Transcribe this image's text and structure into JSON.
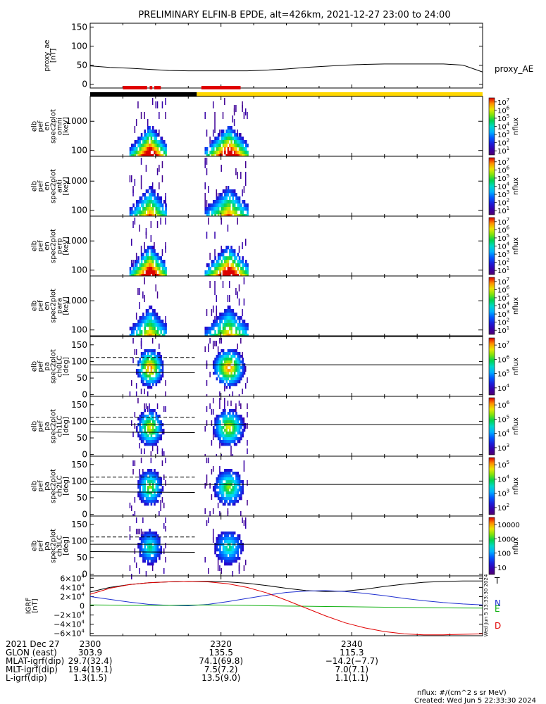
{
  "title": "PRELIMINARY ELFIN-B EPDE, alt=426km, 2021-12-27 23:00 to 24:00",
  "colors": {
    "black": "#000000",
    "red": "#e00000",
    "yellow": "#ffd700",
    "blue": "#2030d0",
    "green": "#10b010"
  },
  "chart_data": [
    {
      "type": "line",
      "name": "proxy_ae",
      "ylabel": "proxy_ae\n[nT]",
      "legend": "proxy_AE",
      "ylim": [
        -10,
        160
      ],
      "yticks": [
        "0",
        "50",
        "100",
        "150"
      ],
      "ytick_values": [
        0,
        50,
        100,
        150
      ],
      "x": [
        0,
        3,
        6,
        9,
        12,
        15,
        18,
        21,
        24,
        27,
        30,
        33,
        36,
        39,
        42,
        45,
        48,
        51,
        54,
        57,
        60
      ],
      "values": [
        48,
        44,
        42,
        39,
        36,
        35,
        35,
        35,
        35,
        37,
        40,
        44,
        47,
        50,
        52,
        53,
        53,
        53,
        53,
        50,
        32
      ]
    },
    {
      "type": "bar",
      "name": "status_bars",
      "segments_top": [
        {
          "start": 5.0,
          "end": 8.7,
          "color": "red"
        },
        {
          "start": 9.1,
          "end": 9.5,
          "color": "red"
        },
        {
          "start": 9.8,
          "end": 10.8,
          "color": "red"
        },
        {
          "start": 17.0,
          "end": 23.0,
          "color": "red"
        }
      ],
      "segments_bottom": [
        {
          "start": 0,
          "end": 16.3,
          "color": "black"
        },
        {
          "start": 16.3,
          "end": 60,
          "color": "yellow"
        }
      ]
    },
    {
      "type": "heatmap",
      "name": "pef_en_spec2plot_omni",
      "ylabel": "elb\npef\nen\nspec2plot\nomni\n[keV]",
      "yticks": [
        "100",
        "1000"
      ],
      "colorbar": {
        "label": "nflux",
        "ticks": [
          "10",
          "10",
          "10",
          "10",
          "10",
          "10",
          "10"
        ],
        "exp": [
          "1",
          "2",
          "3",
          "4",
          "5",
          "6",
          "7"
        ]
      }
    },
    {
      "type": "heatmap",
      "name": "pef_en_spec2plot_anti",
      "ylabel": "elb\npef\nen\nspec2plot\nanti\n[keV]",
      "yticks": [
        "100",
        "1000"
      ],
      "colorbar": {
        "label": "nflux",
        "ticks": [
          "10",
          "10",
          "10",
          "10",
          "10",
          "10",
          "10"
        ],
        "exp": [
          "1",
          "2",
          "3",
          "4",
          "5",
          "6",
          "7"
        ]
      }
    },
    {
      "type": "heatmap",
      "name": "pef_en_spec2plot_perp",
      "ylabel": "elb\npef\nen\nspec2plot\nperp\n[keV]",
      "yticks": [
        "100",
        "1000"
      ],
      "colorbar": {
        "label": "nflux",
        "ticks": [
          "10",
          "10",
          "10",
          "10",
          "10",
          "10",
          "10"
        ],
        "exp": [
          "1",
          "2",
          "3",
          "4",
          "5",
          "6",
          "7"
        ]
      }
    },
    {
      "type": "heatmap",
      "name": "pef_en_spec2plot_para",
      "ylabel": "elb\npef\nen\nspec2plot\npara\n[keV]",
      "yticks": [
        "100",
        "1000"
      ],
      "colorbar": {
        "label": "nflux",
        "ticks": [
          "10",
          "10",
          "10",
          "10",
          "10",
          "10",
          "10"
        ],
        "exp": [
          "1",
          "2",
          "3",
          "4",
          "5",
          "6",
          "7"
        ]
      }
    },
    {
      "type": "heatmap",
      "name": "pef_pa_spec2plot_ch0LC",
      "ylabel": "elb\npef\npa\nspec2plot\nch0LC\n[deg]",
      "yticks": [
        "0",
        "50",
        "100",
        "150"
      ],
      "colorbar": {
        "label": "nflux",
        "ticks": [
          "10",
          "10",
          "10",
          "10"
        ],
        "exp": [
          "4",
          "5",
          "6",
          "7"
        ]
      }
    },
    {
      "type": "heatmap",
      "name": "pef_pa_spec2plot_ch1LC",
      "ylabel": "elb\npef\npa\nspec2plot\nch1LC\n[deg]",
      "yticks": [
        "0",
        "50",
        "100",
        "150"
      ],
      "colorbar": {
        "label": "nflux",
        "ticks": [
          "10",
          "10",
          "10",
          "10"
        ],
        "exp": [
          "3",
          "4",
          "5",
          "6"
        ]
      }
    },
    {
      "type": "heatmap",
      "name": "pef_pa_spec2plot_ch2LC",
      "ylabel": "elb\npef\npa\nspec2plot\nch2LC\n[deg]",
      "yticks": [
        "0",
        "50",
        "100",
        "150"
      ],
      "colorbar": {
        "label": "nflux",
        "ticks": [
          "10",
          "10",
          "10",
          "10"
        ],
        "exp": [
          "2",
          "3",
          "4",
          "5"
        ]
      }
    },
    {
      "type": "heatmap",
      "name": "pef_pa_spec2plot_ch3LC",
      "ylabel": "elb\npef\npa\nspec2plot\nch3LC\n[deg]",
      "yticks": [
        "0",
        "50",
        "100",
        "150"
      ],
      "colorbar": {
        "label": "nflux",
        "ticks": [
          "10",
          "100",
          "1000",
          "10000"
        ],
        "exp": [
          "",
          "",
          "",
          ""
        ]
      }
    },
    {
      "type": "line",
      "name": "igrf",
      "ylabel": "IGRF\n[nT]",
      "yticks": [
        "−6×10",
        "−4×10",
        "−2×10",
        "0",
        "2×10",
        "4×10",
        "6×10"
      ],
      "ytick_exp": [
        "4",
        "4",
        "4",
        "",
        "4",
        "4",
        "4"
      ],
      "ytick_values": [
        -60000,
        -40000,
        -20000,
        0,
        20000,
        40000,
        60000
      ],
      "ylim": [
        -65000,
        65000
      ],
      "x": [
        0,
        3,
        6,
        9,
        12,
        15,
        18,
        21,
        24,
        27,
        30,
        33,
        36,
        39,
        42,
        45,
        48,
        51,
        54,
        57,
        60
      ],
      "series": [
        {
          "name": "T",
          "color": "black",
          "values": [
            30000,
            40000,
            46000,
            50000,
            52000,
            53000,
            53000,
            52000,
            49000,
            44000,
            38000,
            33000,
            31000,
            32000,
            36000,
            42000,
            47000,
            51000,
            53000,
            54000,
            54000
          ]
        },
        {
          "name": "N",
          "color": "blue",
          "values": [
            20000,
            14000,
            8000,
            3000,
            1000,
            0,
            3000,
            9000,
            16000,
            23000,
            29000,
            32000,
            33000,
            31000,
            27000,
            22000,
            16000,
            11000,
            7000,
            4000,
            2000
          ]
        },
        {
          "name": "E",
          "color": "green",
          "values": [
            2000,
            1500,
            1000,
            1000,
            1000,
            1500,
            2000,
            1500,
            1000,
            0,
            -500,
            -1000,
            -1500,
            -2000,
            -2500,
            -3000,
            -3500,
            -4000,
            -4500,
            -4800,
            -5000
          ]
        },
        {
          "name": "D",
          "color": "red",
          "values": [
            25000,
            38000,
            46000,
            50000,
            52000,
            53000,
            52000,
            48000,
            40000,
            28000,
            12000,
            -5000,
            -22000,
            -37000,
            -48000,
            -56000,
            -61000,
            -63000,
            -63000,
            -62000,
            -61000
          ]
        }
      ],
      "side_label": "Wed Jun  5 13:33:30 2024"
    }
  ],
  "xaxis": {
    "ticks": [
      "2300",
      "2320",
      "2340"
    ],
    "tick_minutes": [
      0,
      20,
      40
    ],
    "rows": [
      {
        "label": "2021 Dec 27",
        "values": [
          "2300",
          "2320",
          "2340"
        ]
      },
      {
        "label": "GLON (east)",
        "values": [
          "303.9",
          "135.5",
          "115.3"
        ]
      },
      {
        "label": "MLAT-igrf(dip)",
        "values": [
          "29.7(32.4)",
          "74.1(69.8)",
          "−14.2(−7.7)"
        ]
      },
      {
        "label": "MLT-igrf(dip)",
        "values": [
          "19.4(19.1)",
          "7.5(7.2)",
          "7.0(7.1)"
        ]
      },
      {
        "label": "L-igrf(dip)",
        "values": [
          "1.3(1.5)",
          "13.5(9.0)",
          "1.1(1.1)"
        ]
      }
    ]
  },
  "footer": {
    "units": "nflux: #/(cm^2 s sr MeV)",
    "created": "Created: Wed Jun  5 22:33:30 2024"
  }
}
